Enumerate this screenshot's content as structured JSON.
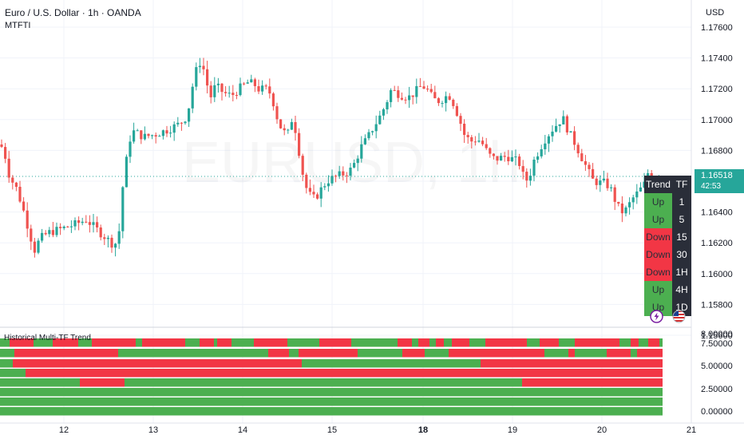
{
  "header": {
    "title": "Euro / U.S. Dollar · 1h · OANDA",
    "indicator": "MTFTI",
    "currency": "USD",
    "watermark": "EURUSD, 1h"
  },
  "price_axis": {
    "labels": [
      "1.17600",
      "1.17400",
      "1.17200",
      "1.17000",
      "1.16800",
      "1.16600",
      "1.16400",
      "1.16200",
      "1.16000",
      "1.15800",
      "1.15600"
    ],
    "current_price": "1.16518",
    "countdown": "42:53",
    "current_color": "#26a69a"
  },
  "lower_pane": {
    "title": "Historical Multi-TF Trend",
    "labels": [
      "7.50000",
      "5.00000",
      "2.50000",
      "0.00000"
    ],
    "top_label": "8.00000"
  },
  "time_axis": [
    "12",
    "13",
    "14",
    "15",
    "18",
    "19",
    "20",
    "21"
  ],
  "colors": {
    "up": "#4caf50",
    "down": "#f23645",
    "bull_candle": "#26a69a",
    "bear_candle": "#ef5350",
    "dark": "#2a2e39"
  },
  "trend_table": {
    "headers": [
      "Trend",
      "TF"
    ],
    "rows": [
      {
        "trend": "Up",
        "tf": "1"
      },
      {
        "trend": "Up",
        "tf": "5"
      },
      {
        "trend": "Down",
        "tf": "15"
      },
      {
        "trend": "Down",
        "tf": "30"
      },
      {
        "trend": "Down",
        "tf": "1H"
      },
      {
        "trend": "Up",
        "tf": "4H"
      },
      {
        "trend": "Up",
        "tf": "1D"
      }
    ]
  },
  "chart_data": {
    "type": "candlestick",
    "symbol": "EURUSD",
    "interval": "1h",
    "ylim": [
      1.1548,
      1.177
    ],
    "path": [
      [
        0,
        1.1672
      ],
      [
        5,
        1.1668
      ],
      [
        12,
        1.165
      ],
      [
        20,
        1.1643
      ],
      [
        28,
        1.163
      ],
      [
        36,
        1.1614
      ],
      [
        43,
        1.16
      ],
      [
        50,
        1.1608
      ],
      [
        60,
        1.1612
      ],
      [
        72,
        1.1614
      ],
      [
        84,
        1.1616
      ],
      [
        95,
        1.1618
      ],
      [
        108,
        1.1621
      ],
      [
        118,
        1.1616
      ],
      [
        130,
        1.161
      ],
      [
        140,
        1.1605
      ],
      [
        148,
        1.1605
      ],
      [
        153,
        1.164
      ],
      [
        158,
        1.166
      ],
      [
        163,
        1.1676
      ],
      [
        168,
        1.1681
      ],
      [
        180,
        1.1677
      ],
      [
        195,
        1.1679
      ],
      [
        210,
        1.1682
      ],
      [
        225,
        1.1686
      ],
      [
        232,
        1.169
      ],
      [
        238,
        1.17
      ],
      [
        243,
        1.1718
      ],
      [
        250,
        1.1728
      ],
      [
        256,
        1.1722
      ],
      [
        263,
        1.1703
      ],
      [
        270,
        1.1712
      ],
      [
        280,
        1.1707
      ],
      [
        290,
        1.1705
      ],
      [
        300,
        1.171
      ],
      [
        310,
        1.1714
      ],
      [
        318,
        1.1713
      ],
      [
        325,
        1.1709
      ],
      [
        332,
        1.171
      ],
      [
        340,
        1.1706
      ],
      [
        346,
        1.1692
      ],
      [
        353,
        1.1682
      ],
      [
        360,
        1.1678
      ],
      [
        366,
        1.169
      ],
      [
        371,
        1.168
      ],
      [
        378,
        1.1655
      ],
      [
        385,
        1.164
      ],
      [
        392,
        1.1635
      ],
      [
        398,
        1.1638
      ],
      [
        405,
        1.1644
      ],
      [
        412,
        1.1648
      ],
      [
        420,
        1.165
      ],
      [
        430,
        1.1652
      ],
      [
        438,
        1.1654
      ],
      [
        445,
        1.166
      ],
      [
        452,
        1.167
      ],
      [
        460,
        1.1676
      ],
      [
        467,
        1.1683
      ],
      [
        475,
        1.169
      ],
      [
        483,
        1.1699
      ],
      [
        490,
        1.1709
      ],
      [
        497,
        1.1707
      ],
      [
        505,
        1.1705
      ],
      [
        512,
        1.1704
      ],
      [
        519,
        1.1707
      ],
      [
        526,
        1.1711
      ],
      [
        533,
        1.1711
      ],
      [
        540,
        1.1705
      ],
      [
        547,
        1.1701
      ],
      [
        555,
        1.1703
      ],
      [
        562,
        1.1706
      ],
      [
        568,
        1.17
      ],
      [
        575,
        1.169
      ],
      [
        582,
        1.1678
      ],
      [
        590,
        1.1674
      ],
      [
        598,
        1.1676
      ],
      [
        605,
        1.1672
      ],
      [
        612,
        1.1665
      ],
      [
        620,
        1.1662
      ],
      [
        628,
        1.1663
      ],
      [
        635,
        1.1664
      ],
      [
        642,
        1.1662
      ],
      [
        650,
        1.166
      ],
      [
        657,
        1.1648
      ],
      [
        662,
        1.1648
      ],
      [
        668,
        1.166
      ],
      [
        675,
        1.1668
      ],
      [
        682,
        1.1675
      ],
      [
        690,
        1.1681
      ],
      [
        698,
        1.1686
      ],
      [
        705,
        1.169
      ],
      [
        712,
        1.1681
      ],
      [
        720,
        1.1673
      ],
      [
        728,
        1.1664
      ],
      [
        735,
        1.1656
      ],
      [
        742,
        1.1648
      ],
      [
        750,
        1.1646
      ],
      [
        758,
        1.1646
      ],
      [
        765,
        1.1642
      ],
      [
        772,
        1.1632
      ],
      [
        778,
        1.1626
      ],
      [
        785,
        1.1628
      ],
      [
        792,
        1.1635
      ],
      [
        800,
        1.164
      ],
      [
        807,
        1.1645
      ],
      [
        813,
        1.1655
      ],
      [
        818,
        1.165
      ],
      [
        826,
        1.16518
      ]
    ]
  }
}
